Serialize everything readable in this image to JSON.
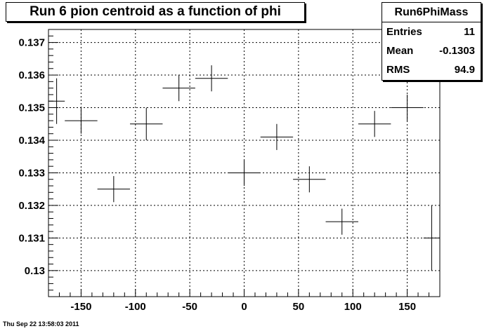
{
  "title": "Run 6 pion centroid as a function of phi",
  "stats": {
    "name": "Run6PhiMass",
    "rows": [
      {
        "label": "Entries",
        "value": "11"
      },
      {
        "label": "Mean",
        "value": "-0.1303"
      },
      {
        "label": "RMS",
        "value": "94.9"
      }
    ]
  },
  "footer": "Thu Sep 22 13:58:03 2011",
  "chart_data": {
    "type": "scatter",
    "title": "Run 6 pion centroid as a function of phi",
    "xlabel": "",
    "ylabel": "",
    "xlim": [
      -180,
      180
    ],
    "ylim": [
      0.1292,
      0.1374
    ],
    "grid": true,
    "x_ticks": [
      -150,
      -100,
      -50,
      0,
      50,
      100,
      150
    ],
    "y_ticks": [
      0.13,
      0.131,
      0.132,
      0.133,
      0.134,
      0.135,
      0.136,
      0.137
    ],
    "x_tick_labels": [
      "-150",
      "-100",
      "-50",
      "0",
      "50",
      "100",
      "150"
    ],
    "y_tick_labels": [
      "0.13",
      "0.131",
      "0.132",
      "0.133",
      "0.134",
      "0.135",
      "0.136",
      "0.137"
    ],
    "points": [
      {
        "x": -172.5,
        "y": 0.1352,
        "xerr": 7.5,
        "yerr": 0.0007
      },
      {
        "x": -150,
        "y": 0.1346,
        "xerr": 15,
        "yerr": 0.0004
      },
      {
        "x": -120,
        "y": 0.1325,
        "xerr": 15,
        "yerr": 0.0004
      },
      {
        "x": -90,
        "y": 0.1345,
        "xerr": 15,
        "yerr": 0.0005
      },
      {
        "x": -60,
        "y": 0.1356,
        "xerr": 15,
        "yerr": 0.0004
      },
      {
        "x": -30,
        "y": 0.1359,
        "xerr": 15,
        "yerr": 0.0004
      },
      {
        "x": 0,
        "y": 0.133,
        "xerr": 15,
        "yerr": 0.0004
      },
      {
        "x": 30,
        "y": 0.1341,
        "xerr": 15,
        "yerr": 0.0004
      },
      {
        "x": 60,
        "y": 0.1328,
        "xerr": 15,
        "yerr": 0.0004
      },
      {
        "x": 90,
        "y": 0.1315,
        "xerr": 15,
        "yerr": 0.0004
      },
      {
        "x": 120,
        "y": 0.1345,
        "xerr": 15,
        "yerr": 0.0004
      },
      {
        "x": 150,
        "y": 0.135,
        "xerr": 15,
        "yerr": 0.0004
      },
      {
        "x": 172.5,
        "y": 0.131,
        "xerr": 7.5,
        "yerr": 0.001
      }
    ]
  }
}
